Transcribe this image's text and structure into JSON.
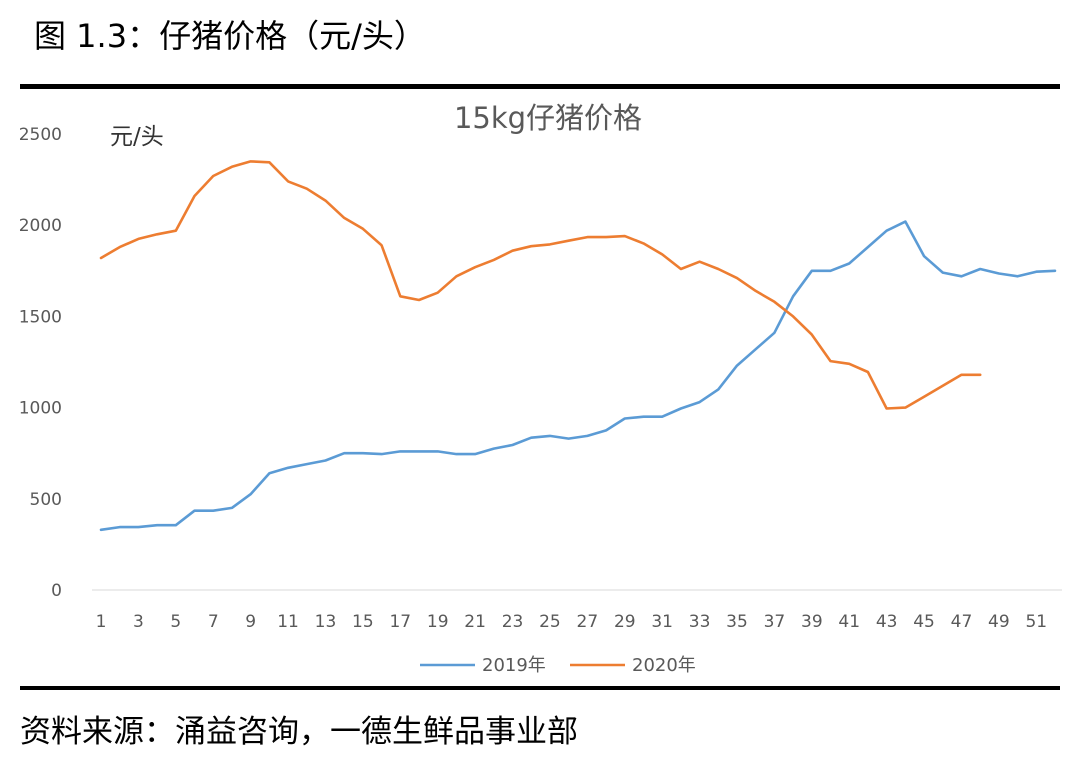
{
  "figure": {
    "title": "图 1.3：仔猪价格（元/头）",
    "source": "资料来源：涌益咨询，一德生鲜品事业部"
  },
  "chart_data": {
    "type": "line",
    "title": "15kg仔猪价格",
    "ylabel": "元/头",
    "xlabel": "",
    "ylim": [
      0,
      2500
    ],
    "yticks": [
      0,
      500,
      1000,
      1500,
      2000,
      2500
    ],
    "xlim": [
      1,
      52
    ],
    "xticks": [
      1,
      3,
      5,
      7,
      9,
      11,
      13,
      15,
      17,
      19,
      21,
      23,
      25,
      27,
      29,
      31,
      33,
      35,
      37,
      39,
      41,
      43,
      45,
      47,
      49,
      51
    ],
    "grid": false,
    "legend": "bottom",
    "series": [
      {
        "name": "2019年",
        "color": "#5b9bd5",
        "x": [
          1,
          2,
          3,
          4,
          5,
          6,
          7,
          8,
          9,
          10,
          11,
          12,
          13,
          14,
          15,
          16,
          17,
          18,
          19,
          20,
          21,
          22,
          23,
          24,
          25,
          26,
          27,
          28,
          29,
          30,
          31,
          32,
          33,
          34,
          35,
          36,
          37,
          38,
          39,
          40,
          41,
          42,
          43,
          44,
          45,
          46,
          47,
          48,
          49,
          50,
          51,
          52
        ],
        "values": [
          330,
          345,
          345,
          355,
          355,
          435,
          435,
          450,
          525,
          640,
          670,
          690,
          710,
          750,
          750,
          745,
          760,
          760,
          760,
          745,
          745,
          775,
          795,
          835,
          845,
          830,
          845,
          875,
          940,
          950,
          950,
          995,
          1030,
          1100,
          1230,
          1320,
          1410,
          1610,
          1750,
          1750,
          1790,
          1880,
          1970,
          2020,
          1830,
          1740,
          1720,
          1760,
          1735,
          1720,
          1745,
          1750
        ]
      },
      {
        "name": "2020年",
        "color": "#ed7d31",
        "x": [
          1,
          2,
          3,
          4,
          5,
          6,
          7,
          8,
          9,
          10,
          11,
          12,
          13,
          14,
          15,
          16,
          17,
          18,
          19,
          20,
          21,
          22,
          23,
          24,
          25,
          26,
          27,
          28,
          29,
          30,
          31,
          32,
          33,
          34,
          35,
          36,
          37,
          38,
          39,
          40,
          41,
          42,
          43,
          44,
          45,
          46,
          47,
          48
        ],
        "values": [
          1820,
          1880,
          1925,
          1950,
          1970,
          2160,
          2270,
          2320,
          2350,
          2345,
          2240,
          2200,
          2135,
          2040,
          1980,
          1890,
          1610,
          1590,
          1630,
          1720,
          1770,
          1810,
          1860,
          1885,
          1895,
          1915,
          1935,
          1935,
          1940,
          1900,
          1840,
          1760,
          1800,
          1760,
          1710,
          1640,
          1580,
          1500,
          1400,
          1255,
          1240,
          1195,
          995,
          1000,
          1060,
          1120,
          1180,
          1180
        ]
      }
    ]
  }
}
